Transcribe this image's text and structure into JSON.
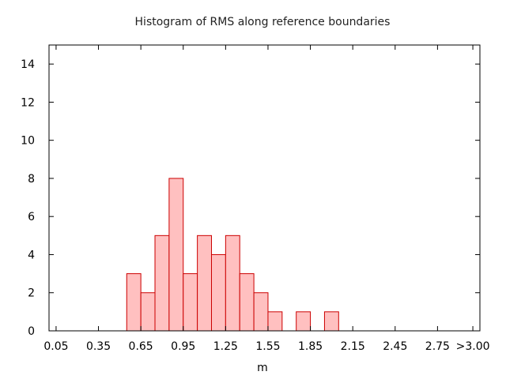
{
  "chart_data": {
    "type": "bar",
    "title": "Histogram of RMS along reference boundaries",
    "xlabel": "m",
    "ylabel": "",
    "xlim": [
      0.0,
      3.05
    ],
    "ylim": [
      0,
      15
    ],
    "bin_width": 0.1,
    "x_tick_values": [
      0.05,
      0.35,
      0.65,
      0.95,
      1.25,
      1.55,
      1.85,
      2.15,
      2.45,
      2.75,
      3.0
    ],
    "x_tick_labels": [
      "0.05",
      "0.35",
      "0.65",
      "0.95",
      "1.25",
      "1.55",
      "1.85",
      "2.15",
      "2.45",
      "2.75",
      ">3.00"
    ],
    "y_tick_values": [
      0,
      2,
      4,
      6,
      8,
      10,
      12,
      14
    ],
    "y_tick_labels": [
      "0",
      "2",
      "4",
      "6",
      "8",
      "10",
      "12",
      "14"
    ],
    "bins": [
      {
        "x": 0.55,
        "value": 3
      },
      {
        "x": 0.65,
        "value": 2
      },
      {
        "x": 0.75,
        "value": 5
      },
      {
        "x": 0.85,
        "value": 8
      },
      {
        "x": 0.95,
        "value": 3
      },
      {
        "x": 1.05,
        "value": 5
      },
      {
        "x": 1.15,
        "value": 4
      },
      {
        "x": 1.25,
        "value": 5
      },
      {
        "x": 1.35,
        "value": 3
      },
      {
        "x": 1.45,
        "value": 2
      },
      {
        "x": 1.55,
        "value": 1
      },
      {
        "x": 1.75,
        "value": 1
      },
      {
        "x": 1.95,
        "value": 1
      }
    ],
    "grid": false,
    "legend": "none",
    "colors": {
      "bar_fill": "#ffc0c0",
      "bar_stroke": "#cc0000",
      "axis": "#000000"
    }
  }
}
